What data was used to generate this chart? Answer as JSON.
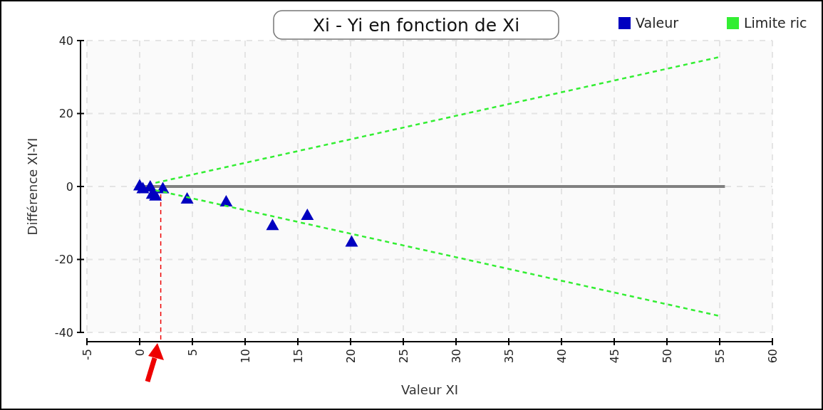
{
  "chart_data": {
    "type": "scatter",
    "title": "Xi - Yi en fonction de Xi",
    "xlabel": "Valeur XI",
    "ylabel": "Différence XI-YI",
    "xlim": [
      -5,
      60
    ],
    "ylim": [
      -40,
      40
    ],
    "xticks": [
      -5,
      0,
      5,
      10,
      15,
      20,
      25,
      30,
      35,
      40,
      45,
      50,
      55,
      60
    ],
    "yticks": [
      -40,
      -20,
      0,
      20,
      40
    ],
    "grid": true,
    "legend": "top right",
    "marker": "triangle",
    "series": [
      {
        "type": "line",
        "color": "#808080",
        "x": [
          0,
          55.5
        ],
        "values": [
          0,
          0
        ],
        "marker": "none",
        "line_style": "solid"
      },
      {
        "name": "Valeur",
        "color": "#0000c0",
        "x": [
          0,
          1,
          0.3,
          1.5,
          1.2,
          2.2,
          4.5,
          8.2,
          12.6,
          15.9,
          20.1
        ],
        "values": [
          0.3,
          0,
          -0.5,
          -2.5,
          -2,
          -0.5,
          -3.3,
          -4.1,
          -10.6,
          -7.8,
          -15.1
        ]
      },
      {
        "name": "Limite ric",
        "type": "line",
        "color": "#33ee33",
        "x": [
          1.5,
          55
        ],
        "values": [
          1,
          35.5
        ],
        "marker": "none",
        "line_style": "dashed"
      },
      {
        "type": "line",
        "color": "#33ee33",
        "x": [
          1.5,
          55
        ],
        "values": [
          -1,
          -35.5
        ],
        "marker": "none",
        "line_style": "dashed"
      }
    ],
    "ref_lines": [
      {
        "axis": "x",
        "value": 2,
        "color": "#ee0000",
        "line_style": "dashed"
      }
    ]
  }
}
